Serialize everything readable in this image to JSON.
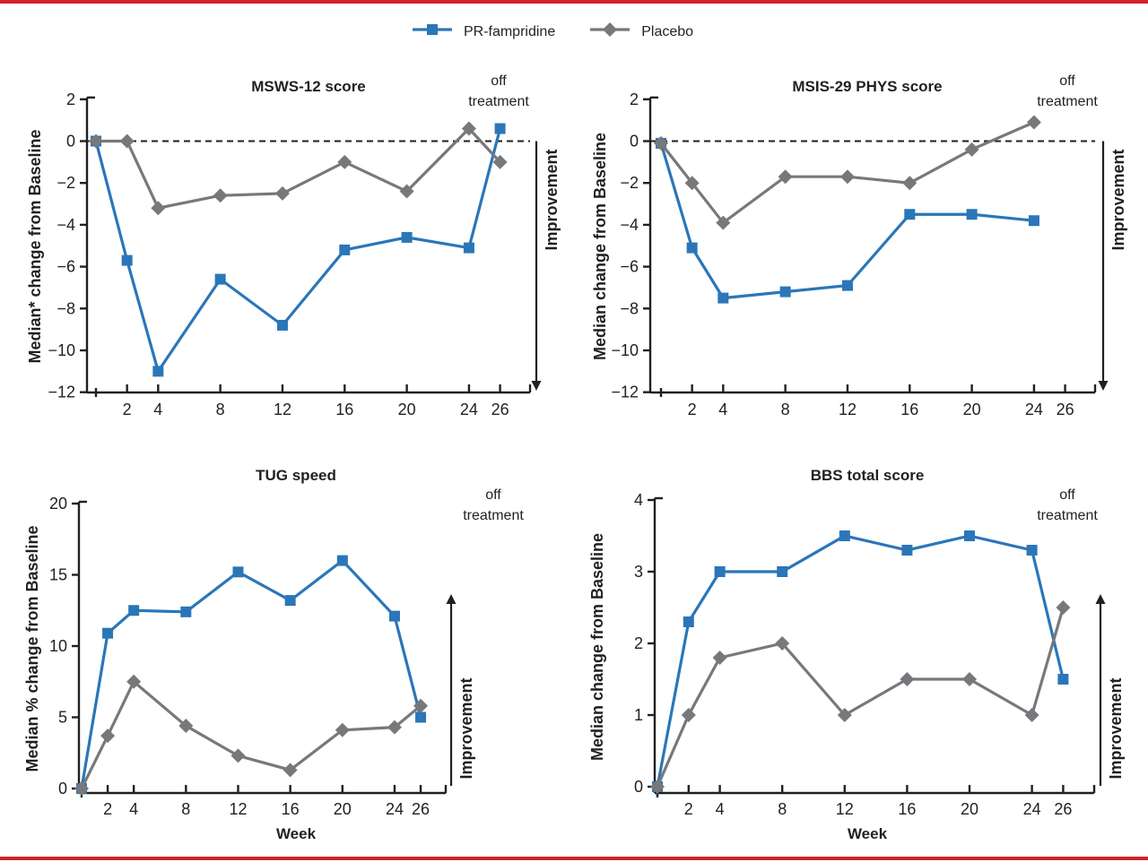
{
  "colors": {
    "pr_fampridine": "#2b76b8",
    "placebo": "#77787b",
    "rule_red": "#d2232a",
    "text": "#231f20",
    "background": "#ffffff"
  },
  "legend": {
    "items": [
      {
        "label": "PR-fampridine",
        "marker": "square",
        "color": "#2b76b8"
      },
      {
        "label": "Placebo",
        "marker": "diamond",
        "color": "#77787b"
      }
    ]
  },
  "chart_data": [
    {
      "type": "line",
      "title": "MSWS-12 score",
      "ylabel": "Median* change from Baseline",
      "xlabel": "",
      "x": [
        0,
        2,
        4,
        8,
        12,
        16,
        20,
        24,
        26
      ],
      "xticks": [
        2,
        4,
        8,
        12,
        16,
        20,
        24,
        26
      ],
      "ylim": [
        -12,
        2
      ],
      "yticks": [
        2,
        0,
        -2,
        -4,
        -6,
        -8,
        -10,
        -12
      ],
      "zero_line_dashed": true,
      "off_label": "off treatment",
      "improvement_label": "Improvement",
      "improvement_direction": "down",
      "series": [
        {
          "name": "PR-fampridine",
          "marker": "square",
          "color": "#2b76b8",
          "values": [
            0,
            -5.7,
            -11,
            -6.6,
            -8.8,
            -5.2,
            -4.6,
            -5.1,
            0.6
          ]
        },
        {
          "name": "Placebo",
          "marker": "diamond",
          "color": "#77787b",
          "values": [
            0,
            0,
            -3.2,
            -2.6,
            -2.5,
            -1,
            -2.4,
            0.6,
            -1
          ]
        }
      ]
    },
    {
      "type": "line",
      "title": "MSIS-29 PHYS score",
      "ylabel": "Median change from Baseline",
      "xlabel": "",
      "x": [
        0,
        2,
        4,
        8,
        12,
        16,
        20,
        24
      ],
      "xticks": [
        2,
        4,
        8,
        12,
        16,
        20,
        24,
        26
      ],
      "ylim": [
        -12,
        2
      ],
      "yticks": [
        2,
        0,
        -2,
        -4,
        -6,
        -8,
        -10,
        -12
      ],
      "zero_line_dashed": true,
      "off_label": "off treatment",
      "improvement_label": "Improvement",
      "improvement_direction": "down",
      "series": [
        {
          "name": "PR-fampridine",
          "marker": "square",
          "color": "#2b76b8",
          "values": [
            -0.1,
            -5.1,
            -7.5,
            -7.2,
            -6.9,
            -3.5,
            -3.5,
            -3.8
          ]
        },
        {
          "name": "Placebo",
          "marker": "diamond",
          "color": "#77787b",
          "values": [
            -0.1,
            -2,
            -3.9,
            -1.7,
            -1.7,
            -2,
            -0.4,
            0.9
          ]
        }
      ]
    },
    {
      "type": "line",
      "title": "TUG speed",
      "ylabel": "Median % change from Baseline",
      "xlabel": "Week",
      "x": [
        0,
        2,
        4,
        8,
        12,
        16,
        20,
        24,
        26
      ],
      "xticks": [
        2,
        4,
        8,
        12,
        16,
        20,
        24,
        26
      ],
      "ylim": [
        0,
        20
      ],
      "yticks": [
        20,
        15,
        10,
        5,
        0
      ],
      "zero_line_dashed": false,
      "off_label": "off treatment",
      "improvement_label": "Improvement",
      "improvement_direction": "up",
      "series": [
        {
          "name": "PR-fampridine",
          "marker": "square",
          "color": "#2b76b8",
          "values": [
            0,
            10.9,
            12.5,
            12.4,
            15.2,
            13.2,
            16,
            12.1,
            5
          ]
        },
        {
          "name": "Placebo",
          "marker": "diamond",
          "color": "#77787b",
          "values": [
            0,
            3.7,
            7.5,
            4.4,
            2.3,
            1.3,
            4.1,
            4.3,
            5.8
          ]
        }
      ]
    },
    {
      "type": "line",
      "title": "BBS total score",
      "ylabel": "Median change from Baseline",
      "xlabel": "Week",
      "x": [
        0,
        2,
        4,
        8,
        12,
        16,
        20,
        24,
        26
      ],
      "xticks": [
        2,
        4,
        8,
        12,
        16,
        20,
        24,
        26
      ],
      "ylim": [
        0,
        4
      ],
      "yticks": [
        4,
        3,
        2,
        1,
        0
      ],
      "zero_line_dashed": false,
      "off_label": "off treatment",
      "improvement_label": "Improvement",
      "improvement_direction": "up",
      "series": [
        {
          "name": "PR-fampridine",
          "marker": "square",
          "color": "#2b76b8",
          "values": [
            0,
            2.3,
            3,
            3,
            3.5,
            3.3,
            3.5,
            3.3,
            1.5
          ]
        },
        {
          "name": "Placebo",
          "marker": "diamond",
          "color": "#77787b",
          "values": [
            0,
            1,
            1.8,
            2,
            1,
            1.5,
            1.5,
            1,
            2.5
          ]
        }
      ]
    }
  ]
}
